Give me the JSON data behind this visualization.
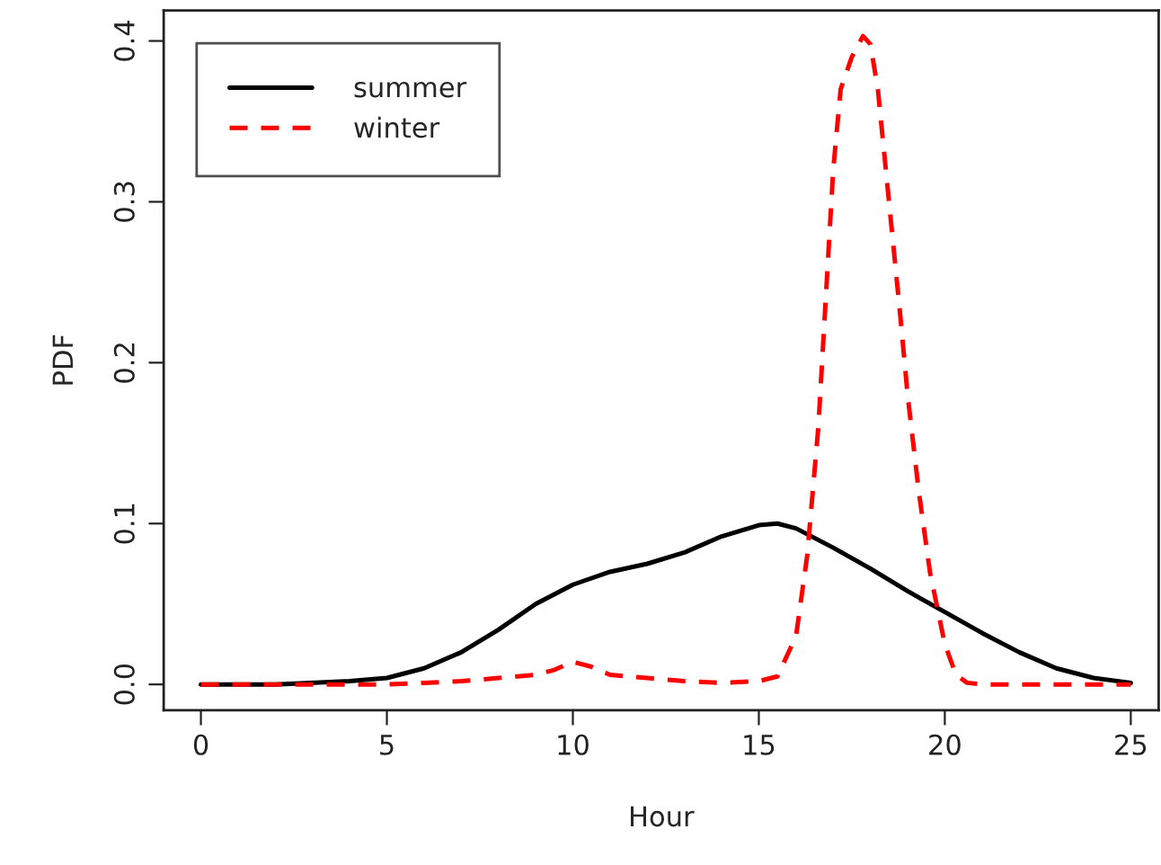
{
  "chart_data": {
    "type": "line",
    "xlabel": "Hour",
    "ylabel": "PDF",
    "xlim": [
      -1,
      25.75
    ],
    "ylim": [
      -0.016,
      0.419
    ],
    "xticks": [
      0,
      5,
      10,
      15,
      20,
      25
    ],
    "yticks": [
      {
        "value": 0,
        "label": "0.0"
      },
      0.1,
      0.2,
      0.3,
      0.4
    ],
    "legend": "top left",
    "grid": false,
    "series": [
      {
        "name": "summer",
        "color": "#000000",
        "line_style": "solid",
        "x": [
          0,
          2,
          4,
          5,
          6,
          7,
          8,
          9,
          10,
          11,
          12,
          13,
          14,
          15,
          15.5,
          16,
          17,
          18,
          19,
          20,
          21,
          22,
          23,
          24,
          25
        ],
        "values": [
          0,
          0,
          0.002,
          0.004,
          0.01,
          0.02,
          0.034,
          0.05,
          0.062,
          0.07,
          0.075,
          0.082,
          0.092,
          0.099,
          0.1,
          0.097,
          0.085,
          0.072,
          0.058,
          0.045,
          0.032,
          0.02,
          0.01,
          0.004,
          0.001
        ]
      },
      {
        "name": "winter",
        "color": "#ff0000",
        "line_style": "dashed",
        "x": [
          0,
          5,
          6,
          7,
          8,
          9,
          9.5,
          10,
          10.5,
          11,
          12,
          13,
          14,
          15,
          15.5,
          16,
          16.3,
          16.6,
          16.8,
          17,
          17.2,
          17.5,
          17.8,
          18,
          18.2,
          18.5,
          18.8,
          19,
          19.3,
          19.6,
          20,
          20.3,
          20.6,
          21,
          25
        ],
        "values": [
          0,
          0,
          0.001,
          0.002,
          0.004,
          0.006,
          0.009,
          0.014,
          0.011,
          0.006,
          0.004,
          0.002,
          0.001,
          0.002,
          0.005,
          0.03,
          0.08,
          0.16,
          0.24,
          0.32,
          0.37,
          0.39,
          0.403,
          0.398,
          0.37,
          0.3,
          0.23,
          0.18,
          0.12,
          0.07,
          0.025,
          0.006,
          0.001,
          0,
          0
        ]
      }
    ]
  }
}
